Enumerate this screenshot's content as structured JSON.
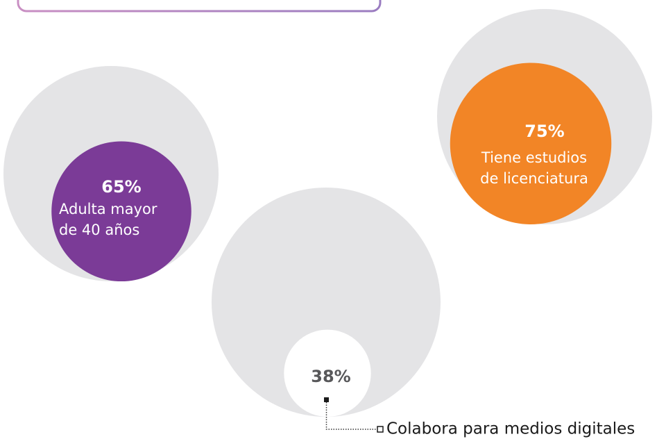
{
  "chart_data": {
    "type": "nested-circle",
    "values": [
      65,
      75,
      38
    ],
    "value_labels": [
      "65%",
      "75%",
      "38%"
    ],
    "categories": [
      [
        "Adulta mayor",
        "de 40 años"
      ],
      [
        "Tiene estudios",
        "de licenciatura"
      ],
      [
        "Colabora para medios digitales"
      ]
    ],
    "colors": [
      "#7b3b97",
      "#f28526",
      "#ffffff"
    ],
    "outer_color": "#e4e4e6"
  }
}
